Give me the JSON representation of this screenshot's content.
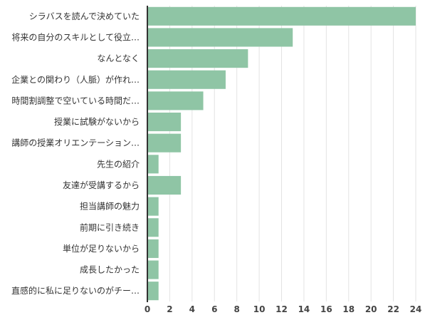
{
  "chart_data": {
    "type": "bar",
    "orientation": "horizontal",
    "categories": [
      "シラバスを読んで決めていた",
      "将来の自分のスキルとして役立…",
      "なんとなく",
      "企業との関わり（人脈）が作れ…",
      "時間割調整で空いている時間だ…",
      "授業に試験がないから",
      "講師の授業オリエンテーション…",
      "先生の紹介",
      "友達が受講するから",
      "担当講師の魅力",
      "前期に引き続き",
      "単位が足りないから",
      "成長したかった",
      "直感的に私に足りないのがチー…"
    ],
    "values": [
      24,
      13,
      9,
      7,
      5,
      3,
      3,
      1,
      3,
      1,
      1,
      1,
      1,
      1
    ],
    "xlim": [
      0,
      24
    ],
    "xticks": [
      "0",
      "2",
      "4",
      "6",
      "8",
      "10",
      "12",
      "14",
      "16",
      "18",
      "20",
      "22",
      "24"
    ],
    "bar_color": "#8fc5a5",
    "grid": true
  }
}
